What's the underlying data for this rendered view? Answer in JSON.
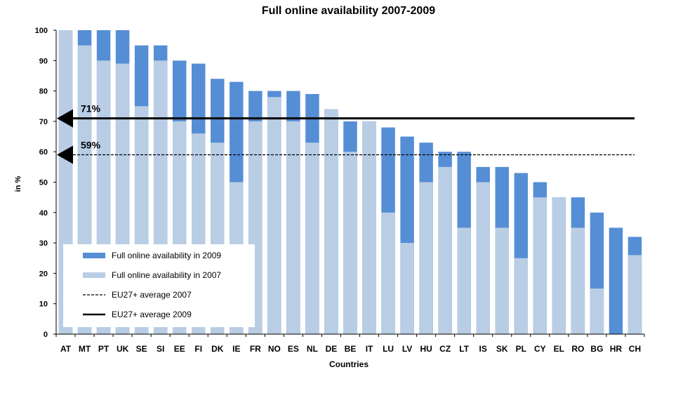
{
  "chart_data": {
    "type": "bar",
    "title": "Full online availability 2007-2009",
    "xlabel": "Countries",
    "ylabel": "in %",
    "ylim": [
      0,
      100
    ],
    "yticks": [
      0,
      10,
      20,
      30,
      40,
      50,
      60,
      70,
      80,
      90,
      100
    ],
    "categories": [
      "AT",
      "MT",
      "PT",
      "UK",
      "SE",
      "SI",
      "EE",
      "FI",
      "DK",
      "IE",
      "FR",
      "NO",
      "ES",
      "NL",
      "DE",
      "BE",
      "IT",
      "LU",
      "LV",
      "HU",
      "CZ",
      "LT",
      "IS",
      "SK",
      "PL",
      "CY",
      "EL",
      "RO",
      "BG",
      "HR",
      "CH"
    ],
    "series": [
      {
        "name": "Full online availability in 2009",
        "color": "#558ed5",
        "values": [
          100,
          100,
          100,
          100,
          95,
          95,
          90,
          89,
          84,
          83,
          80,
          80,
          80,
          79,
          74,
          70,
          70,
          68,
          65,
          63,
          60,
          60,
          55,
          55,
          53,
          50,
          45,
          45,
          40,
          35,
          32
        ]
      },
      {
        "name": "Full online availability in 2007",
        "color": "#b9cde5",
        "values": [
          100,
          95,
          90,
          89,
          75,
          90,
          70,
          66,
          63,
          50,
          70,
          78,
          70,
          63,
          74,
          60,
          70,
          40,
          30,
          50,
          55,
          35,
          50,
          35,
          25,
          45,
          45,
          35,
          15,
          0,
          26
        ]
      }
    ],
    "averages": [
      {
        "name": "EU27+ average 2007",
        "value": 59,
        "label": "59%",
        "style": "dashed"
      },
      {
        "name": "EU27+ average 2009",
        "value": 71,
        "label": "71%",
        "style": "solid"
      }
    ],
    "legend": {
      "placement": "bottom-left"
    }
  }
}
